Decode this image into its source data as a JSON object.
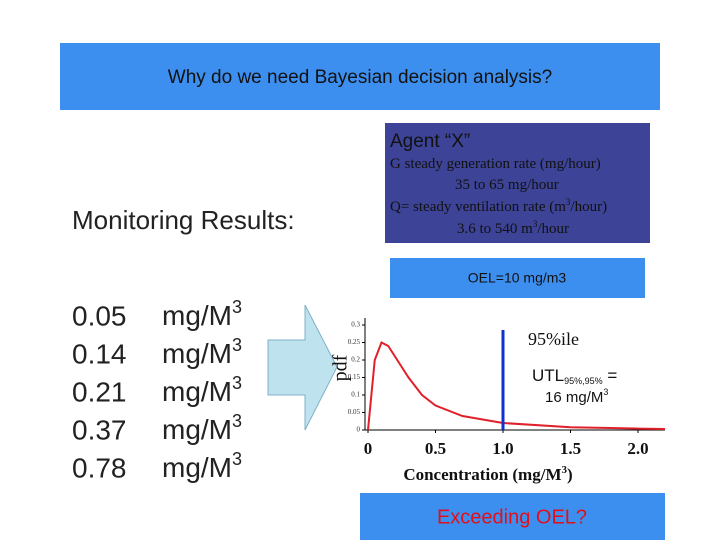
{
  "header": {
    "title": "Why do we need Bayesian decision analysis?"
  },
  "agent": {
    "lines": [
      [
        "Agent “X”"
      ],
      [
        "G   steady generation rate (mg/hour)"
      ],
      [
        "35 to 65 mg/hour"
      ],
      [
        "Q= steady ventilation rate (m",
        "3",
        "/hour)"
      ],
      [
        "3.6 to 540 m",
        "3",
        "/hour"
      ]
    ]
  },
  "oel": "OEL=10 mg/m3",
  "monitoring": {
    "title": "Monitoring Results:",
    "rows": [
      {
        "value": "0.05",
        "unit": "mg/M",
        "sup": "3"
      },
      {
        "value": "0.14",
        "unit": "mg/M",
        "sup": "3"
      },
      {
        "value": "0.21",
        "unit": "mg/M",
        "sup": "3"
      },
      {
        "value": "0.37",
        "unit": "mg/M",
        "sup": "3"
      },
      {
        "value": "0.78",
        "unit": "mg/M",
        "sup": "3"
      }
    ]
  },
  "chart": {
    "type": "line",
    "y_label": "pdf",
    "x_label": [
      "Concentration (mg/M",
      "3",
      ")"
    ],
    "x": [
      0,
      0.05,
      0.1,
      0.15,
      0.2,
      0.3,
      0.4,
      0.5,
      0.7,
      1.0,
      1.5,
      2.0,
      2.2
    ],
    "values": [
      0,
      0.2,
      0.25,
      0.24,
      0.21,
      0.15,
      0.1,
      0.07,
      0.04,
      0.02,
      0.008,
      0.004,
      0.003
    ],
    "color": "#e0202a",
    "xlim": [
      0,
      2.2
    ],
    "ylim": [
      0,
      0.3
    ],
    "xticks": [
      0,
      0.5,
      {
        "value": 1,
        "label": "1.0"
      },
      1.5,
      {
        "value": 2,
        "label": "2.0"
      }
    ],
    "yticks": [
      0,
      0.05,
      0.1,
      0.15,
      0.2,
      0.25,
      0.3
    ],
    "marker": {
      "x": 1,
      "label": "95%ile",
      "color": "#1030d0"
    },
    "utl": {
      "parts": [
        "UTL",
        "95%,95%",
        " ="
      ],
      "line2": [
        "16 mg/M",
        "3"
      ]
    }
  },
  "question": "Exceeding OEL?"
}
